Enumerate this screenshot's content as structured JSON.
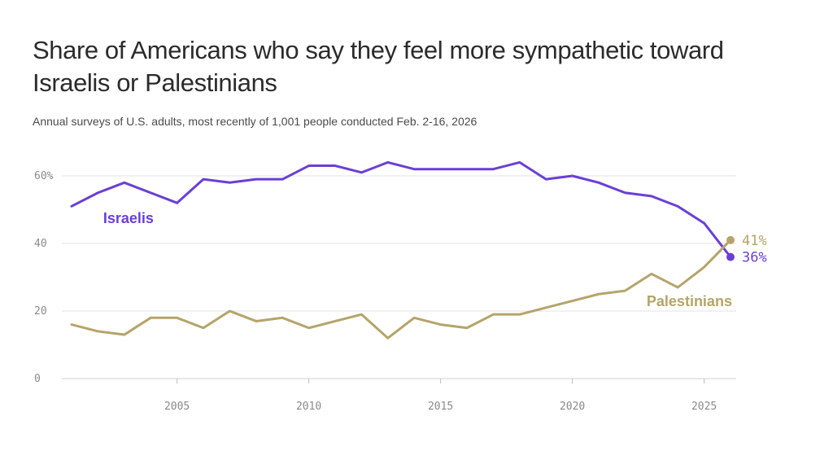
{
  "title": "Share of Americans who say they feel more sympathetic toward Israelis or Palestinians",
  "subtitle": "Annual surveys of U.S. adults, most recently of 1,001 people conducted Feb. 2-16, 2026",
  "chart_data": {
    "type": "line",
    "title": "Share of Americans who say they feel more sympathetic toward Israelis or Palestinians",
    "xlabel": "",
    "ylabel": "",
    "xlim": [
      2001,
      2026
    ],
    "ylim": [
      0,
      60
    ],
    "grid": true,
    "x": [
      2001,
      2002,
      2003,
      2004,
      2005,
      2006,
      2007,
      2008,
      2009,
      2010,
      2011,
      2012,
      2013,
      2014,
      2015,
      2016,
      2017,
      2018,
      2019,
      2020,
      2021,
      2022,
      2023,
      2024,
      2025,
      2026
    ],
    "x_ticks": [
      {
        "value": 2005,
        "label": "2005"
      },
      {
        "value": 2010,
        "label": "2010"
      },
      {
        "value": 2015,
        "label": "2015"
      },
      {
        "value": 2020,
        "label": "2020"
      },
      {
        "value": 2025,
        "label": "2025"
      }
    ],
    "y_ticks": [
      {
        "value": 0,
        "label": "0"
      },
      {
        "value": 20,
        "label": "20"
      },
      {
        "value": 40,
        "label": "40"
      },
      {
        "value": 60,
        "label": "60%"
      }
    ],
    "series": [
      {
        "name": "Israelis",
        "color": "#6a3fd6",
        "values": [
          51,
          55,
          58,
          55,
          52,
          59,
          58,
          59,
          59,
          63,
          63,
          61,
          64,
          62,
          62,
          62,
          62,
          64,
          59,
          60,
          58,
          55,
          54,
          51,
          46,
          36
        ],
        "end_label": "36%"
      },
      {
        "name": "Palestinians",
        "color": "#b5a46a",
        "values": [
          16,
          14,
          13,
          18,
          18,
          15,
          20,
          17,
          18,
          15,
          17,
          19,
          12,
          18,
          16,
          15,
          19,
          19,
          21,
          23,
          25,
          26,
          31,
          27,
          33,
          41
        ],
        "end_label": "41%"
      }
    ]
  }
}
